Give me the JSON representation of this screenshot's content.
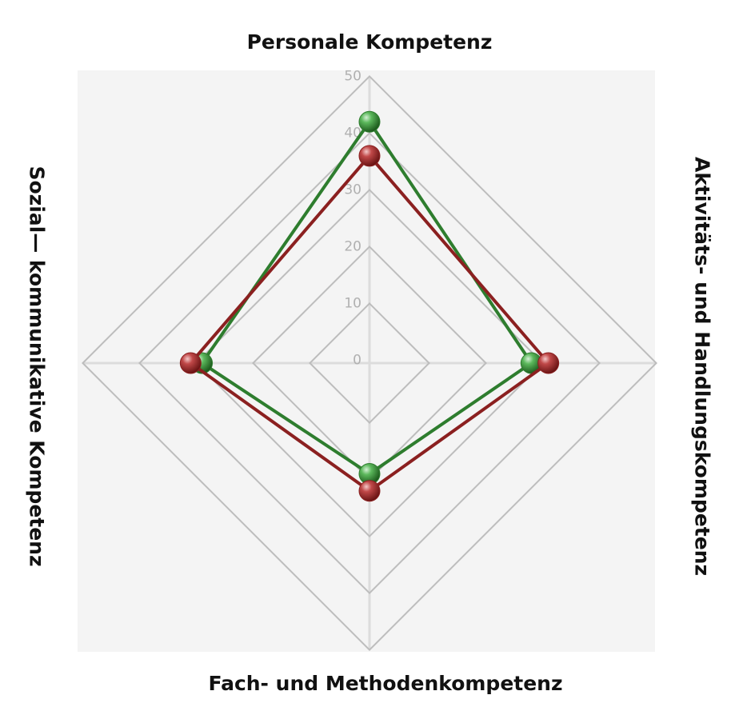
{
  "chart_data": {
    "type": "radar",
    "axes": [
      "Personale Kompetenz",
      "Aktivitäts- und Handlungskompetenz",
      "Fach- und Methodenkompetenz",
      "Sozial— kommunikative Kompetenz"
    ],
    "rlim": [
      0,
      50
    ],
    "ticks": [
      "0",
      "10",
      "20",
      "30",
      "40",
      "50"
    ],
    "tick_values": [
      0,
      10,
      20,
      30,
      40,
      50
    ],
    "grid": true,
    "series": [
      {
        "color": "#2e7d2e",
        "values": [
          42,
          28,
          19,
          29
        ]
      },
      {
        "color": "#8b2020",
        "values": [
          36,
          31,
          22,
          31
        ]
      }
    ]
  }
}
